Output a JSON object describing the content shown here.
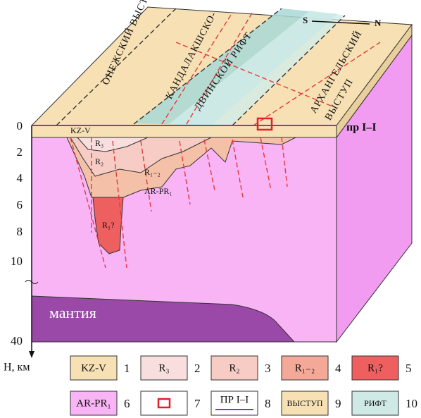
{
  "block": {
    "top_labels": {
      "onega": "ОНЕЖСКИЙ ВЫСТУП",
      "rift_1": "КАНДАЛАКШСКО-",
      "rift_2": "ДВИНСКОЙ РИФТ",
      "arkh_1": "АРХАНГЕЛЬСКИЙ",
      "arkh_2": "ВЫСТУП",
      "south": "S",
      "north": "N"
    },
    "profile": "пр I–I",
    "units": {
      "kzv": "KZ-V",
      "r3": "R₃",
      "r2": "R₂",
      "r12": "R₁₋₂",
      "arpr": "AR-PR₁",
      "r1": "R₁?",
      "mantle": "мантия"
    },
    "depth_labels": [
      0,
      2,
      4,
      6,
      8,
      10,
      40
    ],
    "depth_axis": "H, км"
  },
  "legend": [
    {
      "label": "KZ-V",
      "number": 1
    },
    {
      "label": "R₃",
      "number": 2
    },
    {
      "label": "R₂",
      "number": 3
    },
    {
      "label": "R₁₋₂",
      "number": 4
    },
    {
      "label": "R₁?",
      "number": 5
    },
    {
      "label": "AR-PR₁",
      "number": 6
    },
    {
      "number": 7
    },
    {
      "label": "ПР I–I",
      "number": 8
    },
    {
      "label": "ВЫСТУП",
      "number": 9
    },
    {
      "label": "РИФТ",
      "number": 10
    }
  ]
}
